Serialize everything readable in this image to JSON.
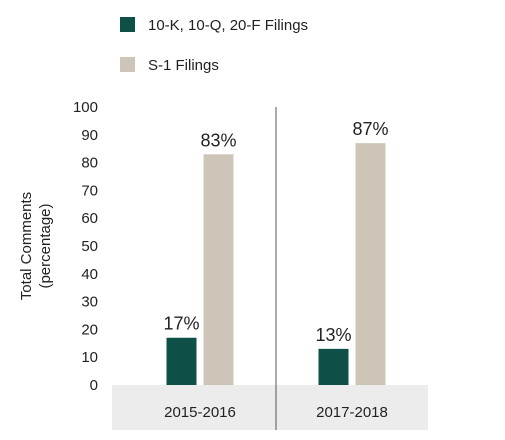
{
  "chart_data": {
    "type": "bar",
    "categories": [
      "2015-2016",
      "2017-2018"
    ],
    "series": [
      {
        "name": "10-K, 10-Q, 20-F Filings",
        "values": [
          17,
          13
        ],
        "color": "#0e4f47"
      },
      {
        "name": "S-1 Filings",
        "values": [
          83,
          87
        ],
        "color": "#cdc5b8"
      }
    ],
    "data_labels": [
      [
        "17%",
        "13%"
      ],
      [
        "83%",
        "87%"
      ]
    ],
    "ylabel_lines": [
      "Total Comments",
      "(percentage)"
    ],
    "ylim": [
      0,
      100
    ],
    "yticks": [
      0,
      10,
      20,
      30,
      40,
      50,
      60,
      70,
      80,
      90,
      100
    ],
    "grid": false,
    "legend_position": "top-left",
    "category_band_color": "#ececec",
    "separator_color": "#555555"
  }
}
